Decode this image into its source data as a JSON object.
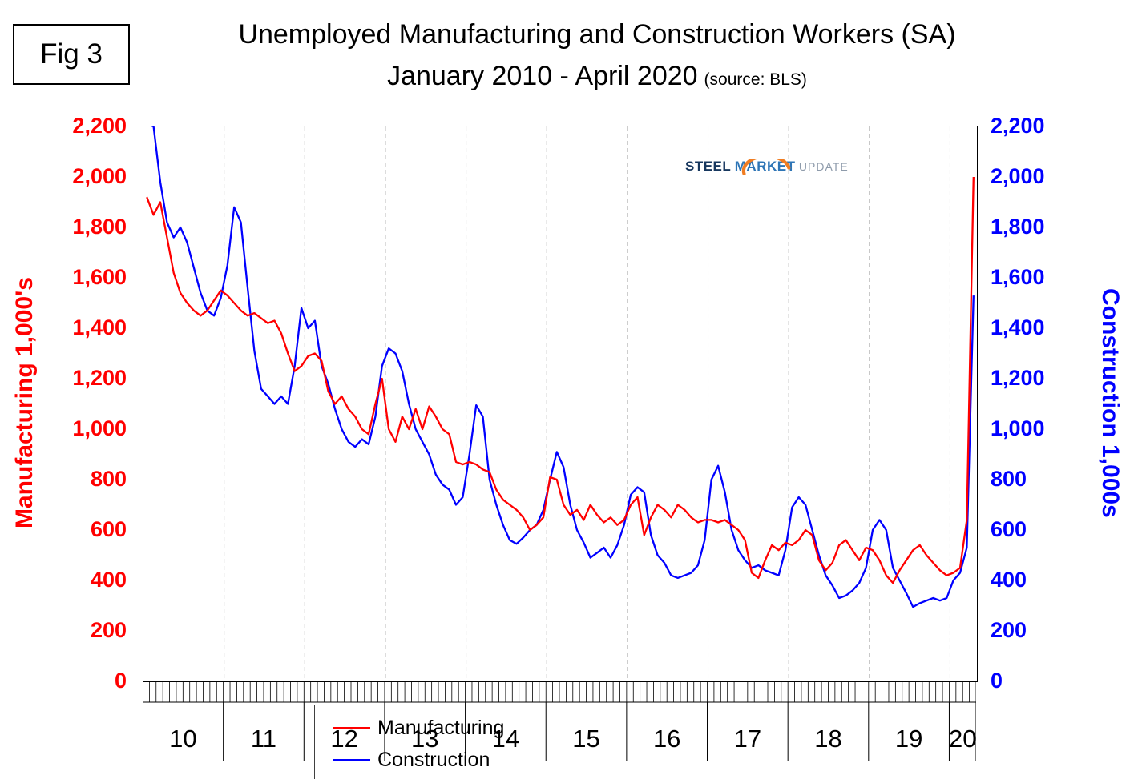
{
  "figure": {
    "label": "Fig 3"
  },
  "title": {
    "line1": "Unemployed Manufacturing and Construction Workers (SA)",
    "line2": "January 2010 - April 2020",
    "source": "(source: BLS)"
  },
  "logo": {
    "steel": "STEEL",
    "market": "MARKET",
    "update": "UPDATE"
  },
  "colors": {
    "manufacturing": "#ff0000",
    "construction": "#0000ff",
    "grid": "#b0b0b0",
    "logo_orange": "#f07d22",
    "logo_navy": "#17375e",
    "logo_blue": "#2e75b6",
    "logo_gray": "#8e9bab"
  },
  "axes": {
    "left_title": "Manufacturing  1,000's",
    "right_title": "Construction 1,000s",
    "tick_step": 200,
    "tick_labels": [
      "0",
      "200",
      "400",
      "600",
      "800",
      "1,000",
      "1,200",
      "1,400",
      "1,600",
      "1,800",
      "2,000",
      "2,200"
    ],
    "year_labels": [
      "10",
      "11",
      "12",
      "13",
      "14",
      "15",
      "16",
      "17",
      "18",
      "19",
      "20"
    ]
  },
  "legend": [
    {
      "label": "Manufacturing",
      "color": "#ff0000"
    },
    {
      "label": "Construction",
      "color": "#0000ff"
    }
  ],
  "chart_data": {
    "type": "line",
    "title": "Unemployed Manufacturing and Construction Workers (SA)",
    "subtitle": "January 2010 - April 2020",
    "source": "BLS",
    "x_start": "2010-01",
    "x_end": "2020-04",
    "x_freq": "monthly",
    "ylim": [
      0,
      2200
    ],
    "y_tick_step": 200,
    "left_axis_label": "Manufacturing 1,000's",
    "right_axis_label": "Construction 1,000s",
    "grid": "vertical-dashed-yearly",
    "legend_position": "bottom-left-inside",
    "series": [
      {
        "name": "Manufacturing",
        "axis": "left",
        "color": "#ff0000",
        "values": [
          1920,
          1850,
          1900,
          1760,
          1620,
          1540,
          1500,
          1470,
          1450,
          1470,
          1510,
          1550,
          1530,
          1500,
          1470,
          1450,
          1460,
          1440,
          1420,
          1430,
          1380,
          1300,
          1230,
          1250,
          1290,
          1300,
          1270,
          1150,
          1100,
          1130,
          1080,
          1050,
          1000,
          980,
          1100,
          1200,
          1000,
          950,
          1050,
          1000,
          1080,
          1000,
          1090,
          1050,
          1000,
          980,
          870,
          860,
          870,
          860,
          840,
          830,
          760,
          720,
          700,
          680,
          650,
          600,
          620,
          650,
          810,
          800,
          700,
          660,
          680,
          640,
          700,
          660,
          630,
          650,
          620,
          640,
          700,
          730,
          580,
          650,
          700,
          680,
          650,
          700,
          680,
          650,
          630,
          640,
          640,
          630,
          640,
          620,
          600,
          560,
          430,
          410,
          480,
          540,
          520,
          550,
          540,
          560,
          600,
          580,
          480,
          440,
          470,
          540,
          560,
          520,
          480,
          530,
          520,
          480,
          420,
          390,
          440,
          480,
          520,
          540,
          500,
          470,
          440,
          420,
          430,
          450,
          640,
          2000
        ]
      },
      {
        "name": "Construction",
        "axis": "right",
        "color": "#0000ff",
        "values": [
          2210,
          2200,
          1980,
          1820,
          1760,
          1800,
          1740,
          1640,
          1540,
          1470,
          1450,
          1520,
          1650,
          1880,
          1820,
          1560,
          1310,
          1160,
          1130,
          1100,
          1130,
          1100,
          1250,
          1480,
          1400,
          1430,
          1250,
          1180,
          1080,
          1000,
          950,
          930,
          960,
          940,
          1050,
          1250,
          1320,
          1300,
          1230,
          1100,
          1000,
          950,
          900,
          820,
          780,
          760,
          700,
          730,
          900,
          1095,
          1050,
          800,
          700,
          620,
          560,
          545,
          570,
          600,
          620,
          680,
          800,
          910,
          850,
          700,
          600,
          550,
          490,
          510,
          530,
          490,
          540,
          620,
          740,
          770,
          750,
          580,
          500,
          470,
          420,
          410,
          420,
          430,
          460,
          560,
          800,
          855,
          750,
          600,
          520,
          480,
          450,
          460,
          440,
          430,
          420,
          520,
          690,
          730,
          700,
          600,
          500,
          420,
          380,
          330,
          340,
          360,
          390,
          450,
          600,
          640,
          600,
          450,
          400,
          350,
          295,
          310,
          320,
          330,
          320,
          330,
          400,
          430,
          530,
          1530
        ]
      }
    ]
  }
}
